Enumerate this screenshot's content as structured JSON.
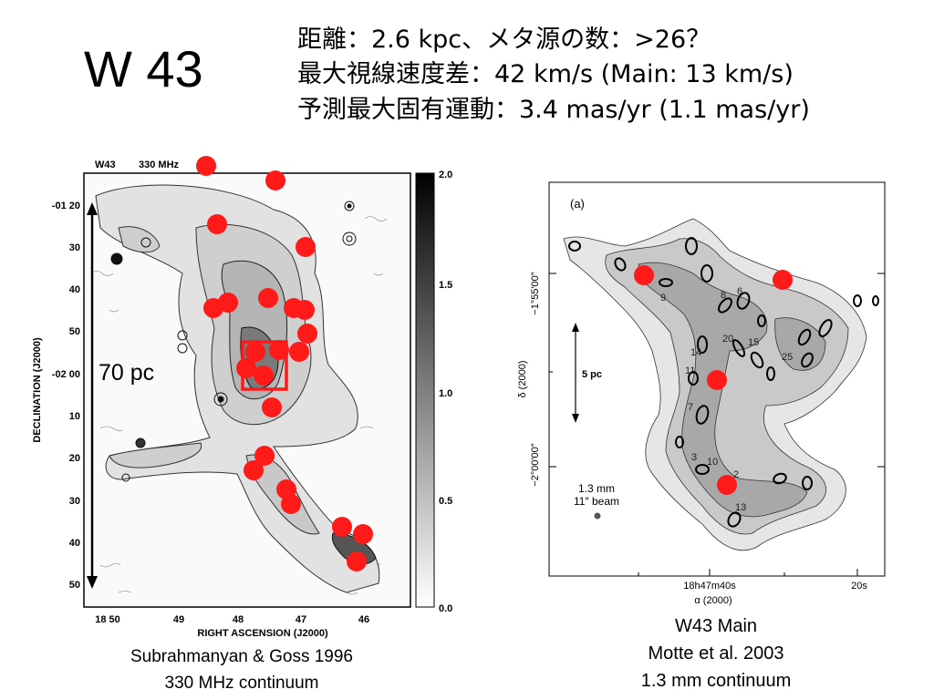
{
  "slide": {
    "title": "W 43",
    "info_lines": [
      "距離：2.6 kpc、メタ源の数：>26？",
      "最大視線速度差：42 km/s  (Main: 13 km/s)",
      "予測最大固有運動：3.4 mas/yr  (1.1 mas/yr)"
    ]
  },
  "left_map": {
    "header_label": "W43",
    "header_freq": "330 MHz",
    "dec_ticks": [
      "-01 20",
      "30",
      "40",
      "50",
      "-02 00",
      "10",
      "20",
      "30",
      "40",
      "50"
    ],
    "ra_ticks": [
      "18 50",
      "49",
      "48",
      "47",
      "46"
    ],
    "colorbar_ticks": [
      "2.0",
      "1.5",
      "1.0",
      "0.5",
      "0.0"
    ],
    "ylabel": "DECLINATION (J2000)",
    "xlabel": "RIGHT ASCENSION (J2000)",
    "scale_label": "70 pc",
    "caption": [
      "Subrahmanyan & Goss 1996",
      "330 MHz continuum"
    ]
  },
  "right_map": {
    "panel_label": "(a)",
    "dec_labels": [
      "−1°55′00″",
      "δ (2000)",
      "−2°00′00″"
    ],
    "ra_label_main": "18h47m40s",
    "ra_label_right": "20s",
    "ra_axis_title": "α (2000)",
    "scale_label": "5 pc",
    "beam_label": [
      "1.3 mm",
      "11″ beam"
    ],
    "source_numbers": [
      "9",
      "8",
      "6",
      "14",
      "20",
      "15",
      "25",
      "11",
      "7",
      "3",
      "10",
      "2",
      "13"
    ],
    "caption": [
      "W43 Main",
      "Motte et al. 2003",
      "1.3 mm continuum"
    ]
  },
  "colors": {
    "maser_marker": "#ff1a1a",
    "contour_fill_light": "#d9d9d9",
    "contour_fill_mid": "#bfbfbf",
    "contour_fill_dark": "#9f9f9f"
  }
}
